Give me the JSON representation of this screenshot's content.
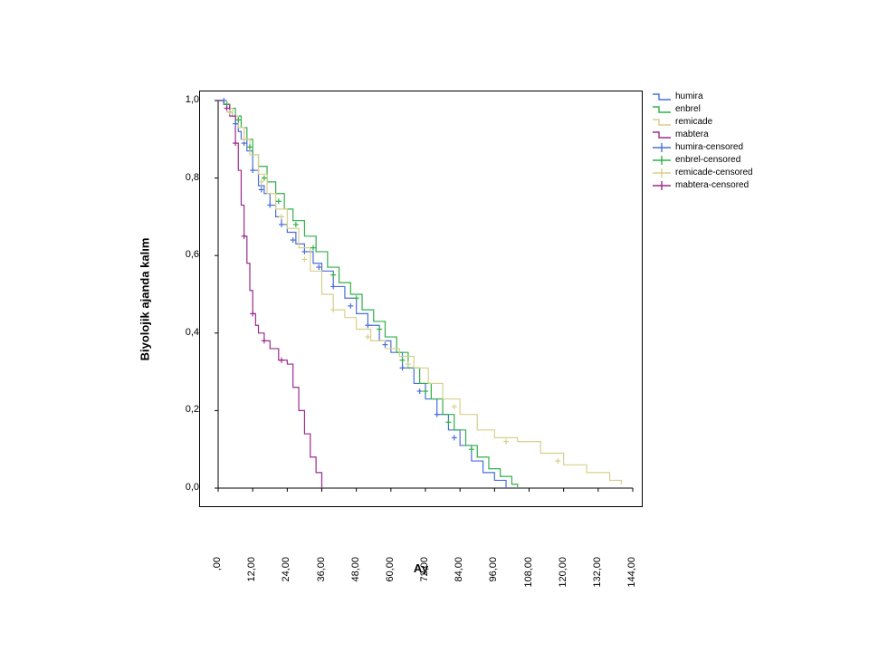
{
  "chart": {
    "type": "kaplan-meier-survival",
    "background_color": "#ffffff",
    "border_color": "#000000",
    "ylabel": "Biyolojik ajanda kalım",
    "xlabel": "Ay",
    "label_fontsize": 13,
    "tick_fontsize": 11,
    "legend_fontsize": 10,
    "xlim": [
      0,
      144
    ],
    "ylim": [
      0,
      1
    ],
    "xtick_values": [
      0,
      12,
      24,
      36,
      48,
      60,
      72,
      84,
      96,
      108,
      120,
      132,
      144
    ],
    "xtick_labels": [
      ",00",
      "12,00",
      "24,00",
      "36,00",
      "48,00",
      "60,00",
      "72,00",
      "84,00",
      "96,00",
      "108,00",
      "120,00",
      "132,00",
      "144,00"
    ],
    "ytick_values": [
      0.0,
      0.2,
      0.4,
      0.6,
      0.8,
      1.0
    ],
    "ytick_labels": [
      "0,0",
      "0,2",
      "0,4",
      "0,6",
      "0,8",
      "1,0"
    ],
    "series": {
      "humira": {
        "label": "humira",
        "color": "#4a6fd8",
        "line_width": 1.2,
        "steps": [
          [
            0,
            1.0
          ],
          [
            2,
            0.99
          ],
          [
            3,
            0.98
          ],
          [
            4,
            0.97
          ],
          [
            5,
            0.96
          ],
          [
            6,
            0.94
          ],
          [
            7,
            0.92
          ],
          [
            8,
            0.9
          ],
          [
            10,
            0.87
          ],
          [
            12,
            0.82
          ],
          [
            14,
            0.78
          ],
          [
            16,
            0.76
          ],
          [
            18,
            0.73
          ],
          [
            20,
            0.7
          ],
          [
            22,
            0.68
          ],
          [
            24,
            0.66
          ],
          [
            27,
            0.63
          ],
          [
            30,
            0.61
          ],
          [
            33,
            0.58
          ],
          [
            36,
            0.56
          ],
          [
            40,
            0.52
          ],
          [
            44,
            0.49
          ],
          [
            48,
            0.45
          ],
          [
            52,
            0.42
          ],
          [
            56,
            0.38
          ],
          [
            60,
            0.35
          ],
          [
            64,
            0.31
          ],
          [
            68,
            0.27
          ],
          [
            72,
            0.23
          ],
          [
            76,
            0.19
          ],
          [
            80,
            0.15
          ],
          [
            84,
            0.11
          ],
          [
            88,
            0.07
          ],
          [
            92,
            0.04
          ],
          [
            96,
            0.02
          ],
          [
            100,
            0.0
          ]
        ]
      },
      "enbrel": {
        "label": "enbrel",
        "color": "#2fb04a",
        "line_width": 1.2,
        "steps": [
          [
            0,
            1.0
          ],
          [
            2,
            0.99
          ],
          [
            4,
            0.98
          ],
          [
            6,
            0.96
          ],
          [
            8,
            0.93
          ],
          [
            10,
            0.9
          ],
          [
            12,
            0.86
          ],
          [
            14,
            0.83
          ],
          [
            17,
            0.79
          ],
          [
            20,
            0.76
          ],
          [
            23,
            0.72
          ],
          [
            26,
            0.69
          ],
          [
            30,
            0.65
          ],
          [
            34,
            0.61
          ],
          [
            38,
            0.57
          ],
          [
            42,
            0.53
          ],
          [
            46,
            0.5
          ],
          [
            50,
            0.46
          ],
          [
            54,
            0.43
          ],
          [
            58,
            0.39
          ],
          [
            62,
            0.35
          ],
          [
            66,
            0.31
          ],
          [
            70,
            0.27
          ],
          [
            74,
            0.23
          ],
          [
            78,
            0.19
          ],
          [
            82,
            0.15
          ],
          [
            86,
            0.11
          ],
          [
            90,
            0.08
          ],
          [
            94,
            0.05
          ],
          [
            98,
            0.03
          ],
          [
            102,
            0.01
          ],
          [
            104,
            0.0
          ]
        ]
      },
      "remicade": {
        "label": "remicade",
        "color": "#d8d08a",
        "line_width": 1.2,
        "steps": [
          [
            0,
            1.0
          ],
          [
            3,
            0.98
          ],
          [
            5,
            0.96
          ],
          [
            7,
            0.93
          ],
          [
            9,
            0.9
          ],
          [
            11,
            0.86
          ],
          [
            14,
            0.81
          ],
          [
            17,
            0.76
          ],
          [
            20,
            0.72
          ],
          [
            24,
            0.67
          ],
          [
            28,
            0.62
          ],
          [
            32,
            0.56
          ],
          [
            36,
            0.5
          ],
          [
            40,
            0.46
          ],
          [
            44,
            0.44
          ],
          [
            48,
            0.41
          ],
          [
            53,
            0.38
          ],
          [
            58,
            0.36
          ],
          [
            63,
            0.34
          ],
          [
            68,
            0.31
          ],
          [
            73,
            0.27
          ],
          [
            78,
            0.23
          ],
          [
            84,
            0.19
          ],
          [
            90,
            0.15
          ],
          [
            96,
            0.13
          ],
          [
            104,
            0.12
          ],
          [
            112,
            0.09
          ],
          [
            120,
            0.06
          ],
          [
            128,
            0.04
          ],
          [
            136,
            0.02
          ],
          [
            140,
            0.01
          ]
        ]
      },
      "mabtera": {
        "label": "mabtera",
        "color": "#9c2b8f",
        "line_width": 1.2,
        "steps": [
          [
            0,
            1.0
          ],
          [
            2,
            0.99
          ],
          [
            4,
            0.96
          ],
          [
            6,
            0.89
          ],
          [
            7,
            0.82
          ],
          [
            8,
            0.73
          ],
          [
            9,
            0.65
          ],
          [
            10,
            0.58
          ],
          [
            11,
            0.51
          ],
          [
            12,
            0.45
          ],
          [
            13,
            0.42
          ],
          [
            14,
            0.4
          ],
          [
            16,
            0.38
          ],
          [
            18,
            0.36
          ],
          [
            21,
            0.33
          ],
          [
            24,
            0.32
          ],
          [
            26,
            0.26
          ],
          [
            28,
            0.2
          ],
          [
            30,
            0.14
          ],
          [
            32,
            0.08
          ],
          [
            34,
            0.04
          ],
          [
            36,
            0.0
          ]
        ]
      }
    },
    "censored": {
      "humira": {
        "label": "humira-censored",
        "color": "#4a6fd8",
        "marker": "+",
        "marker_size": 6,
        "points": [
          [
            2,
            1.0
          ],
          [
            4,
            0.97
          ],
          [
            6,
            0.94
          ],
          [
            9,
            0.89
          ],
          [
            12,
            0.82
          ],
          [
            15,
            0.77
          ],
          [
            18,
            0.73
          ],
          [
            22,
            0.68
          ],
          [
            26,
            0.64
          ],
          [
            30,
            0.61
          ],
          [
            35,
            0.57
          ],
          [
            40,
            0.52
          ],
          [
            46,
            0.47
          ],
          [
            52,
            0.42
          ],
          [
            58,
            0.37
          ],
          [
            64,
            0.31
          ],
          [
            70,
            0.25
          ],
          [
            76,
            0.19
          ],
          [
            82,
            0.13
          ]
        ]
      },
      "enbrel": {
        "label": "enbrel-censored",
        "color": "#2fb04a",
        "marker": "+",
        "marker_size": 6,
        "points": [
          [
            3,
            0.99
          ],
          [
            7,
            0.95
          ],
          [
            11,
            0.88
          ],
          [
            16,
            0.8
          ],
          [
            21,
            0.74
          ],
          [
            27,
            0.68
          ],
          [
            33,
            0.62
          ],
          [
            40,
            0.55
          ],
          [
            48,
            0.49
          ],
          [
            56,
            0.41
          ],
          [
            64,
            0.33
          ],
          [
            72,
            0.25
          ],
          [
            80,
            0.17
          ],
          [
            88,
            0.1
          ]
        ]
      },
      "remicade": {
        "label": "remicade-censored",
        "color": "#d8d08a",
        "marker": "+",
        "marker_size": 6,
        "points": [
          [
            4,
            0.97
          ],
          [
            9,
            0.9
          ],
          [
            15,
            0.79
          ],
          [
            22,
            0.7
          ],
          [
            30,
            0.59
          ],
          [
            40,
            0.46
          ],
          [
            52,
            0.39
          ],
          [
            66,
            0.32
          ],
          [
            82,
            0.21
          ],
          [
            100,
            0.12
          ],
          [
            118,
            0.07
          ]
        ]
      },
      "mabtera": {
        "label": "mabtera-censored",
        "color": "#9c2b8f",
        "marker": "+",
        "marker_size": 6,
        "points": [
          [
            3,
            0.98
          ],
          [
            6,
            0.89
          ],
          [
            9,
            0.65
          ],
          [
            12,
            0.45
          ],
          [
            16,
            0.38
          ],
          [
            22,
            0.33
          ]
        ]
      }
    },
    "legend_order": [
      "humira",
      "enbrel",
      "remicade",
      "mabtera",
      "humira-censored",
      "enbrel-censored",
      "remicade-censored",
      "mabtera-censored"
    ]
  }
}
